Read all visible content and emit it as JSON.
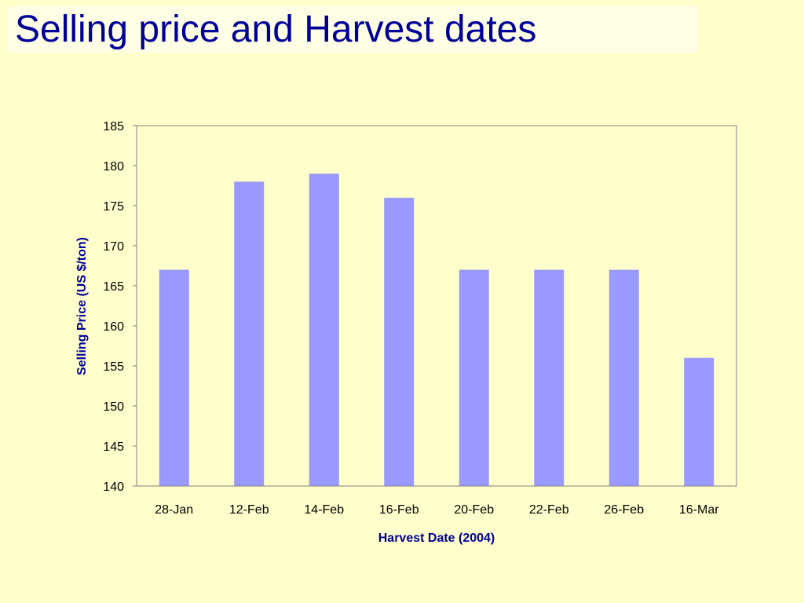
{
  "slide": {
    "title": "Selling price and Harvest dates"
  },
  "colors": {
    "background": "#FFFFCC",
    "title": "#000099",
    "bar": "#9999FF"
  },
  "chart_data": {
    "type": "bar",
    "title": "",
    "xlabel": "Harvest Date (2004)",
    "ylabel": "Selling Price (US $/ton)",
    "categories": [
      "28-Jan",
      "12-Feb",
      "14-Feb",
      "16-Feb",
      "20-Feb",
      "22-Feb",
      "26-Feb",
      "16-Mar"
    ],
    "values": [
      167,
      178,
      179,
      176,
      167,
      167,
      167,
      156
    ],
    "ylim": [
      140,
      185
    ],
    "yticks": [
      140,
      145,
      150,
      155,
      160,
      165,
      170,
      175,
      180,
      185
    ],
    "grid": false,
    "legend": "none"
  }
}
